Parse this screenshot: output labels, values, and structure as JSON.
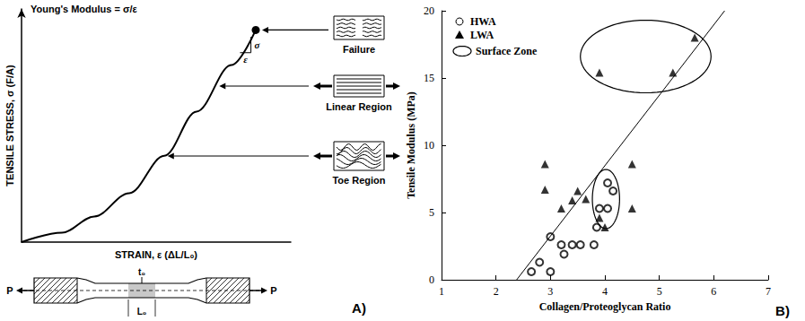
{
  "chart_data": [
    {
      "type": "line",
      "panel": "A)",
      "title": "Young's Modulus = σ/ε",
      "x_label": "STRAIN, ε (ΔL/L₀)",
      "y_label": "TENSILE STRESS, σ (F/A)",
      "x": [
        0,
        0.15,
        0.27,
        0.4,
        0.53,
        0.65,
        0.78,
        0.87
      ],
      "values": [
        0,
        0.04,
        0.11,
        0.21,
        0.37,
        0.56,
        0.76,
        0.91
      ],
      "xlim": [
        0,
        1
      ],
      "ylim": [
        0,
        1
      ],
      "tick_labels": false,
      "color": "#000000",
      "annotations": [
        "Failure",
        "Linear Region",
        "Toe Region"
      ],
      "slope_labels": [
        "σ",
        "ε"
      ],
      "specimen_labels": [
        "P",
        "t₀",
        "L₀"
      ]
    },
    {
      "type": "scatter",
      "panel": "B)",
      "x_label": "Collagen/Proteoglycan Ratio",
      "y_label": "Tensile Modulus (MPa)",
      "xlim": [
        1,
        7
      ],
      "xticks": [
        1,
        2,
        3,
        4,
        5,
        6,
        7
      ],
      "ylim": [
        0,
        20
      ],
      "yticks": [
        0,
        5,
        10,
        15,
        20
      ],
      "grid": false,
      "legend": "top-left",
      "series": [
        {
          "name": "HWA",
          "marker": "open circle",
          "color": "#000000",
          "x": [
            2.65,
            2.8,
            3.0,
            3.0,
            3.2,
            3.25,
            3.4,
            3.55,
            3.8,
            3.85,
            3.9,
            4.05,
            4.05,
            4.15
          ],
          "values": [
            0.6,
            1.3,
            0.6,
            3.2,
            2.6,
            1.9,
            2.6,
            2.6,
            2.6,
            3.9,
            5.3,
            7.2,
            5.3,
            6.6
          ]
        },
        {
          "name": "LWA",
          "marker": "triangle",
          "color": "#000000",
          "x": [
            2.9,
            2.9,
            3.2,
            3.4,
            3.5,
            3.65,
            3.9,
            4.0,
            4.5,
            4.5,
            3.9,
            5.25,
            5.65
          ],
          "values": [
            8.6,
            6.7,
            5.3,
            5.9,
            6.6,
            6.0,
            4.6,
            3.9,
            8.6,
            5.3,
            15.4,
            15.4,
            18.0
          ]
        }
      ],
      "fit_line": {
        "x": [
          2.38,
          6.2
        ],
        "values": [
          0,
          20
        ]
      },
      "regions": [
        {
          "name": "Surface Zone",
          "x_center": 4.75,
          "y_center": 16.6,
          "x_radius": 1.2,
          "y_radius": 2.7
        },
        {
          "x_center": 4.02,
          "y_center": 6.0,
          "x_radius": 0.25,
          "y_radius": 2.2
        }
      ]
    }
  ]
}
